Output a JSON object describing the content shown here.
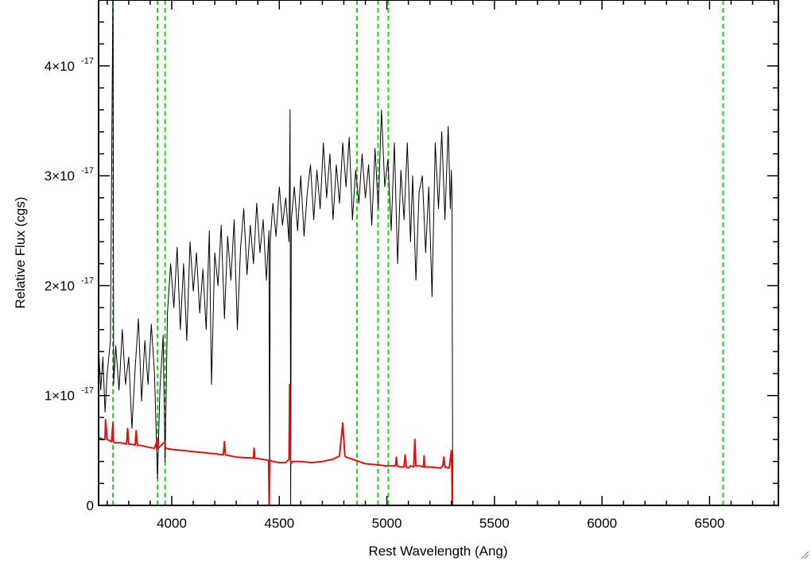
{
  "chart_data": {
    "type": "line",
    "xlabel": "Rest Wavelength (Ang)",
    "ylabel": "Relative Flux (cgs)",
    "xlim": [
      3660,
      6820
    ],
    "ylim": [
      0,
      4.6e-17
    ],
    "x_ticks": [
      {
        "value": 4000,
        "label": "4000"
      },
      {
        "value": 4500,
        "label": "4500"
      },
      {
        "value": 5000,
        "label": "5000"
      },
      {
        "value": 5500,
        "label": "5500"
      },
      {
        "value": 6000,
        "label": "6000"
      },
      {
        "value": 6500,
        "label": "6500"
      }
    ],
    "y_ticks": [
      {
        "value": 0,
        "label": "0",
        "exp": ""
      },
      {
        "value": 1e-17,
        "label": "1×10",
        "exp": "-17"
      },
      {
        "value": 2e-17,
        "label": "2×10",
        "exp": "-17"
      },
      {
        "value": 3e-17,
        "label": "3×10",
        "exp": "-17"
      },
      {
        "value": 4e-17,
        "label": "4×10",
        "exp": "-17"
      }
    ],
    "grid": false,
    "legend": "none",
    "reference_lines": {
      "color": "#22cc22",
      "style": "dashed",
      "x": [
        3727,
        3934,
        3969,
        4861,
        4959,
        5007,
        6563
      ]
    },
    "series": [
      {
        "color": "#000000",
        "x": [
          3660,
          3670,
          3680,
          3690,
          3700,
          3715,
          3727,
          3730,
          3740,
          3755,
          3770,
          3785,
          3800,
          3815,
          3830,
          3845,
          3860,
          3875,
          3890,
          3905,
          3920,
          3934,
          3945,
          3960,
          3969,
          3980,
          3995,
          4010,
          4025,
          4040,
          4055,
          4070,
          4085,
          4100,
          4115,
          4130,
          4145,
          4160,
          4175,
          4185,
          4200,
          4215,
          4230,
          4245,
          4260,
          4275,
          4290,
          4305,
          4320,
          4335,
          4350,
          4365,
          4380,
          4395,
          4410,
          4425,
          4440,
          4452,
          4455,
          4458,
          4470,
          4485,
          4500,
          4515,
          4530,
          4545,
          4550,
          4553,
          4556,
          4570,
          4585,
          4600,
          4615,
          4630,
          4645,
          4660,
          4675,
          4690,
          4705,
          4720,
          4735,
          4750,
          4765,
          4780,
          4795,
          4810,
          4825,
          4840,
          4855,
          4870,
          4885,
          4900,
          4915,
          4930,
          4945,
          4960,
          4975,
          4990,
          5005,
          5020,
          5035,
          5050,
          5065,
          5080,
          5095,
          5110,
          5120,
          5135,
          5150,
          5165,
          5180,
          5195,
          5210,
          5225,
          5240,
          5255,
          5270,
          5285,
          5295,
          5300,
          5303,
          5306
        ],
        "y": [
          1.45e-17,
          1.05e-17,
          1.35e-17,
          8.5e-18,
          1.2e-17,
          1.5e-17,
          4.8e-17,
          1.1e-17,
          1.45e-17,
          1.05e-17,
          1.6e-17,
          1.1e-17,
          1.35e-17,
          7e-18,
          1.25e-17,
          1.7e-17,
          9.5e-18,
          1.5e-17,
          1.1e-17,
          1.65e-17,
          1.2e-17,
          2.5e-18,
          1.05e-17,
          1.55e-17,
          4e-18,
          1.75e-17,
          2.2e-17,
          1.8e-17,
          2.35e-17,
          1.6e-17,
          2.2e-17,
          1.5e-17,
          2.4e-17,
          1.95e-17,
          2.3e-17,
          1.75e-17,
          2.15e-17,
          1.6e-17,
          2.5e-17,
          1.1e-17,
          2.3e-17,
          2e-17,
          2.55e-17,
          1.7e-17,
          2.45e-17,
          2.05e-17,
          2.6e-17,
          1.6e-17,
          2.35e-17,
          2.7e-17,
          2.1e-17,
          2.55e-17,
          2.2e-17,
          2.75e-17,
          2.3e-17,
          2.6e-17,
          2.05e-17,
          2.5e-17,
          0.0,
          2.4e-17,
          2.75e-17,
          2.45e-17,
          2.9e-17,
          2.55e-17,
          2.8e-17,
          2.4e-17,
          3.6e-17,
          0.0,
          2.6e-17,
          2.9e-17,
          2.5e-17,
          3e-17,
          2.45e-17,
          2.85e-17,
          3.1e-17,
          2.6e-17,
          3.05e-17,
          2.7e-17,
          3.3e-17,
          2.8e-17,
          3.2e-17,
          2.6e-17,
          3.1e-17,
          2.75e-17,
          3.3e-17,
          2.9e-17,
          3.35e-17,
          2.6e-17,
          3.05e-17,
          2.75e-17,
          3.2e-17,
          2.8e-17,
          3.1e-17,
          2.55e-17,
          3.25e-17,
          2.7e-17,
          3.6e-17,
          2.9e-17,
          3.15e-17,
          2.5e-17,
          3.3e-17,
          2.2e-17,
          3.05e-17,
          2.6e-17,
          3.3e-17,
          2.4e-17,
          3e-17,
          2.05e-17,
          2.85e-17,
          3e-17,
          2.3e-17,
          2.9e-17,
          1.9e-17,
          3.3e-17,
          2.7e-17,
          3.4e-17,
          2.6e-17,
          3.45e-17,
          2.7e-17,
          3.05e-17,
          2.8e-17,
          0.0
        ]
      },
      {
        "color": "#dd1111",
        "x": [
          3660,
          3680,
          3690,
          3692,
          3700,
          3720,
          3727,
          3729,
          3735,
          3760,
          3790,
          3795,
          3800,
          3830,
          3835,
          3840,
          3870,
          3890,
          3920,
          3934,
          3936,
          3969,
          3971,
          4000,
          4050,
          4100,
          4150,
          4200,
          4240,
          4245,
          4250,
          4300,
          4380,
          4383,
          4386,
          4420,
          4450,
          4453,
          4456,
          4458,
          4470,
          4500,
          4530,
          4545,
          4548,
          4551,
          4555,
          4560,
          4600,
          4650,
          4700,
          4750,
          4780,
          4795,
          4800,
          4805,
          4810,
          4840,
          4870,
          4900,
          4950,
          5000,
          5040,
          5044,
          5048,
          5060,
          5080,
          5085,
          5090,
          5100,
          5110,
          5125,
          5130,
          5135,
          5150,
          5170,
          5173,
          5176,
          5200,
          5250,
          5260,
          5265,
          5270,
          5290,
          5300,
          5302,
          5304,
          5306,
          6820
        ],
        "y": [
          6.2e-18,
          6e-18,
          6e-18,
          7.8e-18,
          6e-18,
          5.8e-18,
          7.5e-18,
          5.8e-18,
          5.7e-18,
          5.7e-18,
          5.6e-18,
          7e-18,
          5.6e-18,
          5.5e-18,
          6.8e-18,
          5.5e-18,
          5.4e-18,
          5.3e-18,
          5.2e-18,
          6e-18,
          5.2e-18,
          5.8e-18,
          5.2e-18,
          5.1e-18,
          5e-18,
          4.9e-18,
          4.8e-18,
          4.7e-18,
          4.6e-18,
          5.8e-18,
          4.6e-18,
          4.4e-18,
          4.3e-18,
          5.2e-18,
          4.3e-18,
          4.2e-18,
          4.1e-18,
          -2e-19,
          4.1e-18,
          4.1e-18,
          4e-18,
          3.9e-18,
          3.9e-18,
          4.2e-18,
          1.1e-17,
          4.2e-18,
          3.8e-18,
          4e-18,
          4e-18,
          3.9e-18,
          4e-18,
          4.2e-18,
          4.5e-18,
          7.5e-18,
          6e-18,
          4.5e-18,
          4.4e-18,
          4.2e-18,
          4e-18,
          3.8e-18,
          3.7e-18,
          3.6e-18,
          3.6e-18,
          4.4e-18,
          3.6e-18,
          3.5e-18,
          3.5e-18,
          4.6e-18,
          3.5e-18,
          3.4e-18,
          3.6e-18,
          3.5e-18,
          6e-18,
          3.6e-18,
          3.6e-18,
          3.5e-18,
          4.5e-18,
          3.5e-18,
          3.5e-18,
          3.4e-18,
          3.6e-18,
          4.4e-18,
          3.5e-18,
          3.4e-18,
          5e-18,
          3e-18,
          0.0,
          0.0,
          0.0
        ]
      }
    ]
  }
}
